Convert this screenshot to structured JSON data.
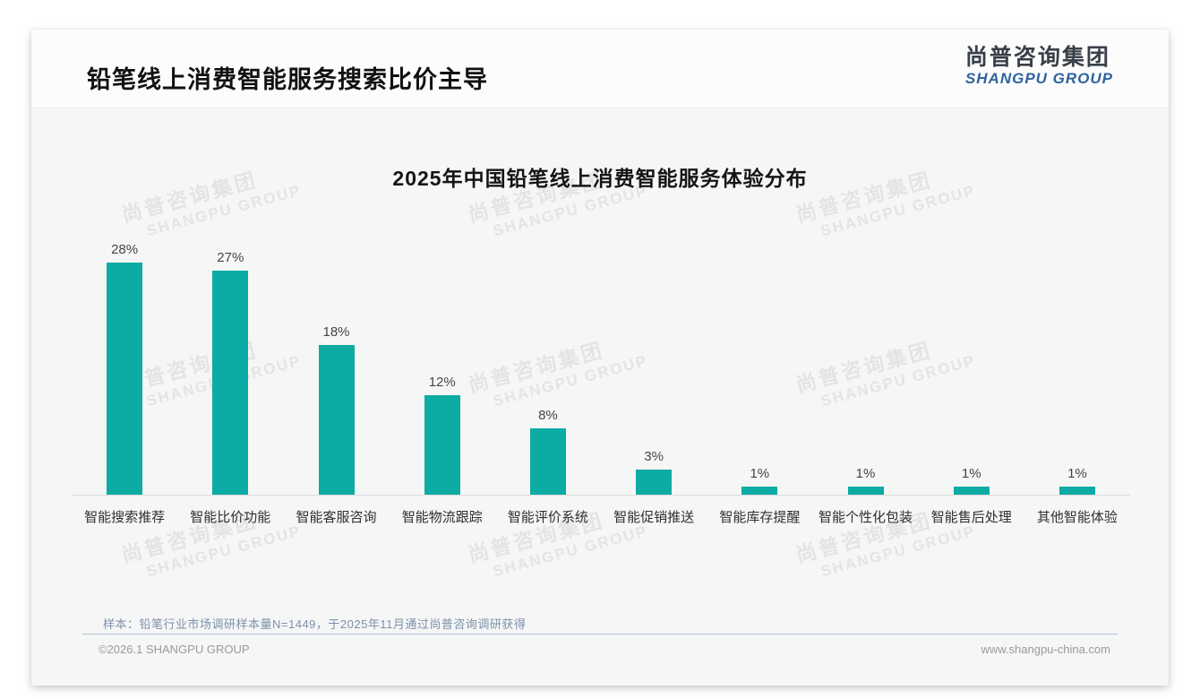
{
  "header": {
    "title": "铅笔线上消费智能服务搜索比价主导",
    "logo": {
      "cn": "尚普咨询集团",
      "en": "SHANGPU GROUP"
    }
  },
  "chart_data": {
    "type": "bar",
    "title": "2025年中国铅笔线上消费智能服务体验分布",
    "categories": [
      "智能搜索推荐",
      "智能比价功能",
      "智能客服咨询",
      "智能物流跟踪",
      "智能评价系统",
      "智能促销推送",
      "智能库存提醒",
      "智能个性化包装",
      "智能售后处理",
      "其他智能体验"
    ],
    "values": [
      28,
      27,
      18,
      12,
      8,
      3,
      1,
      1,
      1,
      1
    ],
    "value_labels": [
      "28%",
      "27%",
      "18%",
      "12%",
      "8%",
      "3%",
      "1%",
      "1%",
      "1%",
      "1%"
    ],
    "unit": "%",
    "ylim": [
      0,
      30
    ],
    "grid": false,
    "legend": null,
    "bar_color": "#0caba3",
    "value_label_color": "#454545",
    "axis_line_color": "#dbdbdb"
  },
  "watermark": {
    "line1": "尚普咨询集团",
    "line2": "SHANGPU GROUP"
  },
  "footnote": "样本：铅笔行业市场调研样本量N=1449，于2025年11月通过尚普咨询调研获得",
  "footer": {
    "copyright": "©2026.1 SHANGPU GROUP",
    "website": "www.shangpu-china.com"
  }
}
